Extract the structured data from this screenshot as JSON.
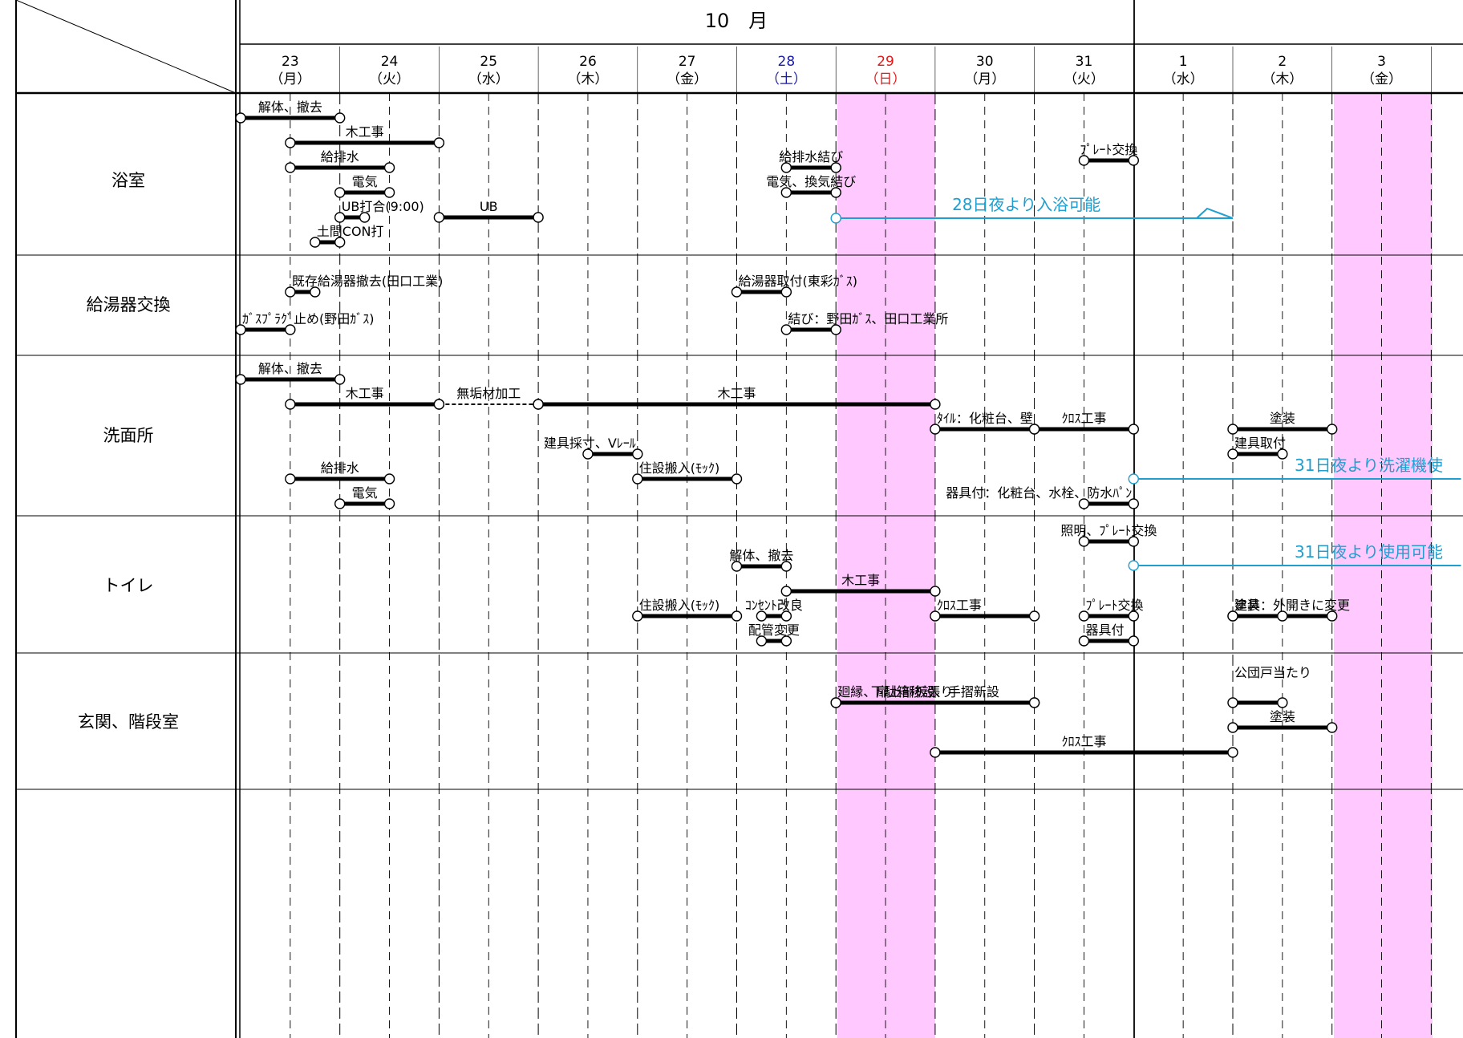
{
  "header": {
    "month": "10　月"
  },
  "days": [
    {
      "num": "23",
      "week": "（月）",
      "color": "#000000"
    },
    {
      "num": "24",
      "week": "（火）",
      "color": "#000000"
    },
    {
      "num": "25",
      "week": "（水）",
      "color": "#000000"
    },
    {
      "num": "26",
      "week": "（木）",
      "color": "#000000"
    },
    {
      "num": "27",
      "week": "（金）",
      "color": "#000000"
    },
    {
      "num": "28",
      "week": "（土）",
      "color": "#1a1aa6"
    },
    {
      "num": "29",
      "week": "（日）",
      "color": "#e01818"
    },
    {
      "num": "30",
      "week": "（月）",
      "color": "#000000"
    },
    {
      "num": "31",
      "week": "（火）",
      "color": "#000000"
    },
    {
      "num": "1",
      "week": "（水）",
      "color": "#000000"
    },
    {
      "num": "2",
      "week": "（木）",
      "color": "#000000"
    },
    {
      "num": "3",
      "week": "（金）",
      "color": "#000000"
    }
  ],
  "rows": [
    {
      "label": "浴室"
    },
    {
      "label": "給湯器交換"
    },
    {
      "label": "洗面所"
    },
    {
      "label": "トイレ"
    },
    {
      "label": "玄関、階段室"
    }
  ],
  "tasks": [
    {
      "label": "解体、撤去",
      "start": 0,
      "end": 1
    },
    {
      "label": "木工事",
      "start": 0.5,
      "end": 2
    },
    {
      "label": "給排水",
      "start": 0.5,
      "end": 1.5
    },
    {
      "label": "電気",
      "start": 1,
      "end": 1.5
    },
    {
      "label": "UB打合(9:00)",
      "start": 1,
      "end": 1.25
    },
    {
      "label": "UB",
      "start": 2,
      "end": 3
    },
    {
      "label": "土間CON打",
      "start": 0.75,
      "end": 1
    },
    {
      "label": "給排水結び",
      "start": 5.5,
      "end": 6
    },
    {
      "label": "電気、換気結び",
      "start": 5.5,
      "end": 6
    },
    {
      "label": "既存給湯器撤去(田口工業)",
      "start": 0.5,
      "end": 0.75
    },
    {
      "label": "ｶﾞｽﾌﾟﾗｸﾞ止め(野田ｶﾞｽ)",
      "start": 0,
      "end": 0.5
    },
    {
      "label": "給湯器取付(東彩ｶﾞｽ)",
      "start": 5,
      "end": 5.5
    },
    {
      "label": "結び：野田ｶﾞｽ、田口工業所",
      "start": 5.5,
      "end": 6
    },
    {
      "label": "解体、撤去",
      "start": 0,
      "end": 1
    },
    {
      "label": "木工事",
      "start": 0.5,
      "end": 2
    },
    {
      "label": "無垢材加工",
      "start": 2,
      "end": 3,
      "dashed": true
    },
    {
      "label": "木工事",
      "start": 3,
      "end": 7
    },
    {
      "label": "ﾀｲﾙ：化粧台、壁",
      "start": 7,
      "end": 8
    },
    {
      "label": "ｸﾛｽ工事",
      "start": 8,
      "end": 9
    },
    {
      "label": "塗装",
      "start": 10,
      "end": 11
    },
    {
      "label": "建具取付",
      "start": 10,
      "end": 10.5
    },
    {
      "label": "建具採寸、Vﾚｰﾙ",
      "start": 3.5,
      "end": 4
    },
    {
      "label": "住設搬入(ﾓｯｸ)",
      "start": 4,
      "end": 5
    },
    {
      "label": "給排水",
      "start": 0.5,
      "end": 1.5
    },
    {
      "label": "電気",
      "start": 1,
      "end": 1.5
    },
    {
      "label": "器具付：化粧台、水栓、防水ﾊﾟﾝ",
      "start": 8.5,
      "end": 9
    },
    {
      "label": "照明、ﾌﾟﾚｰﾄ交換",
      "start": 8.5,
      "end": 9
    },
    {
      "label": "解体、撤去",
      "start": 5,
      "end": 5.5
    },
    {
      "label": "木工事",
      "start": 5.5,
      "end": 7
    },
    {
      "label": "ｸﾛｽ工事",
      "start": 7,
      "end": 8
    },
    {
      "label": "塗装",
      "start": 10,
      "end": 11
    },
    {
      "label": "住設搬入(ﾓｯｸ)",
      "start": 4,
      "end": 5
    },
    {
      "label": "配管変更",
      "start": 5.25,
      "end": 5.5
    },
    {
      "label": "ｺﾝｾﾝﾄ改良",
      "start": 5.25,
      "end": 5.5
    },
    {
      "label": "器具付",
      "start": 8.5,
      "end": 9
    },
    {
      "label": "ﾌﾟﾚｰﾄ交換",
      "start": 8.5,
      "end": 9
    },
    {
      "label": "建具：外開きに変更",
      "start": 10,
      "end": 10.5
    },
    {
      "label": "公団戸当たり",
      "start": 10,
      "end": 10.5
    },
    {
      "label": "廻縁、扉上部板張り",
      "start": 6,
      "end": 8
    },
    {
      "label": "下駄箱移設、手摺新設",
      "start": 6,
      "end": 8
    },
    {
      "label": "塗装",
      "start": 10,
      "end": 11
    },
    {
      "label": "ｸﾛｽ工事",
      "start": 7,
      "end": 10
    },
    {
      "label": "ﾌﾟﾚｰﾄ交換",
      "start": 8.5,
      "end": 9
    }
  ],
  "notes": [
    {
      "text": "28日夜より入浴可能",
      "start": 6,
      "end": 10,
      "color": "#1e9fd0"
    },
    {
      "text": "31日夜より洗濯機使",
      "start": 9,
      "end": 12.3,
      "color": "#1e9fd0"
    },
    {
      "text": "31日夜より使用可能",
      "start": 9,
      "end": 12.3,
      "color": "#1e9fd0"
    }
  ],
  "colors": {
    "holiday": "#ffc8ff",
    "bar": "#000000",
    "note": "#1e9fd0"
  }
}
